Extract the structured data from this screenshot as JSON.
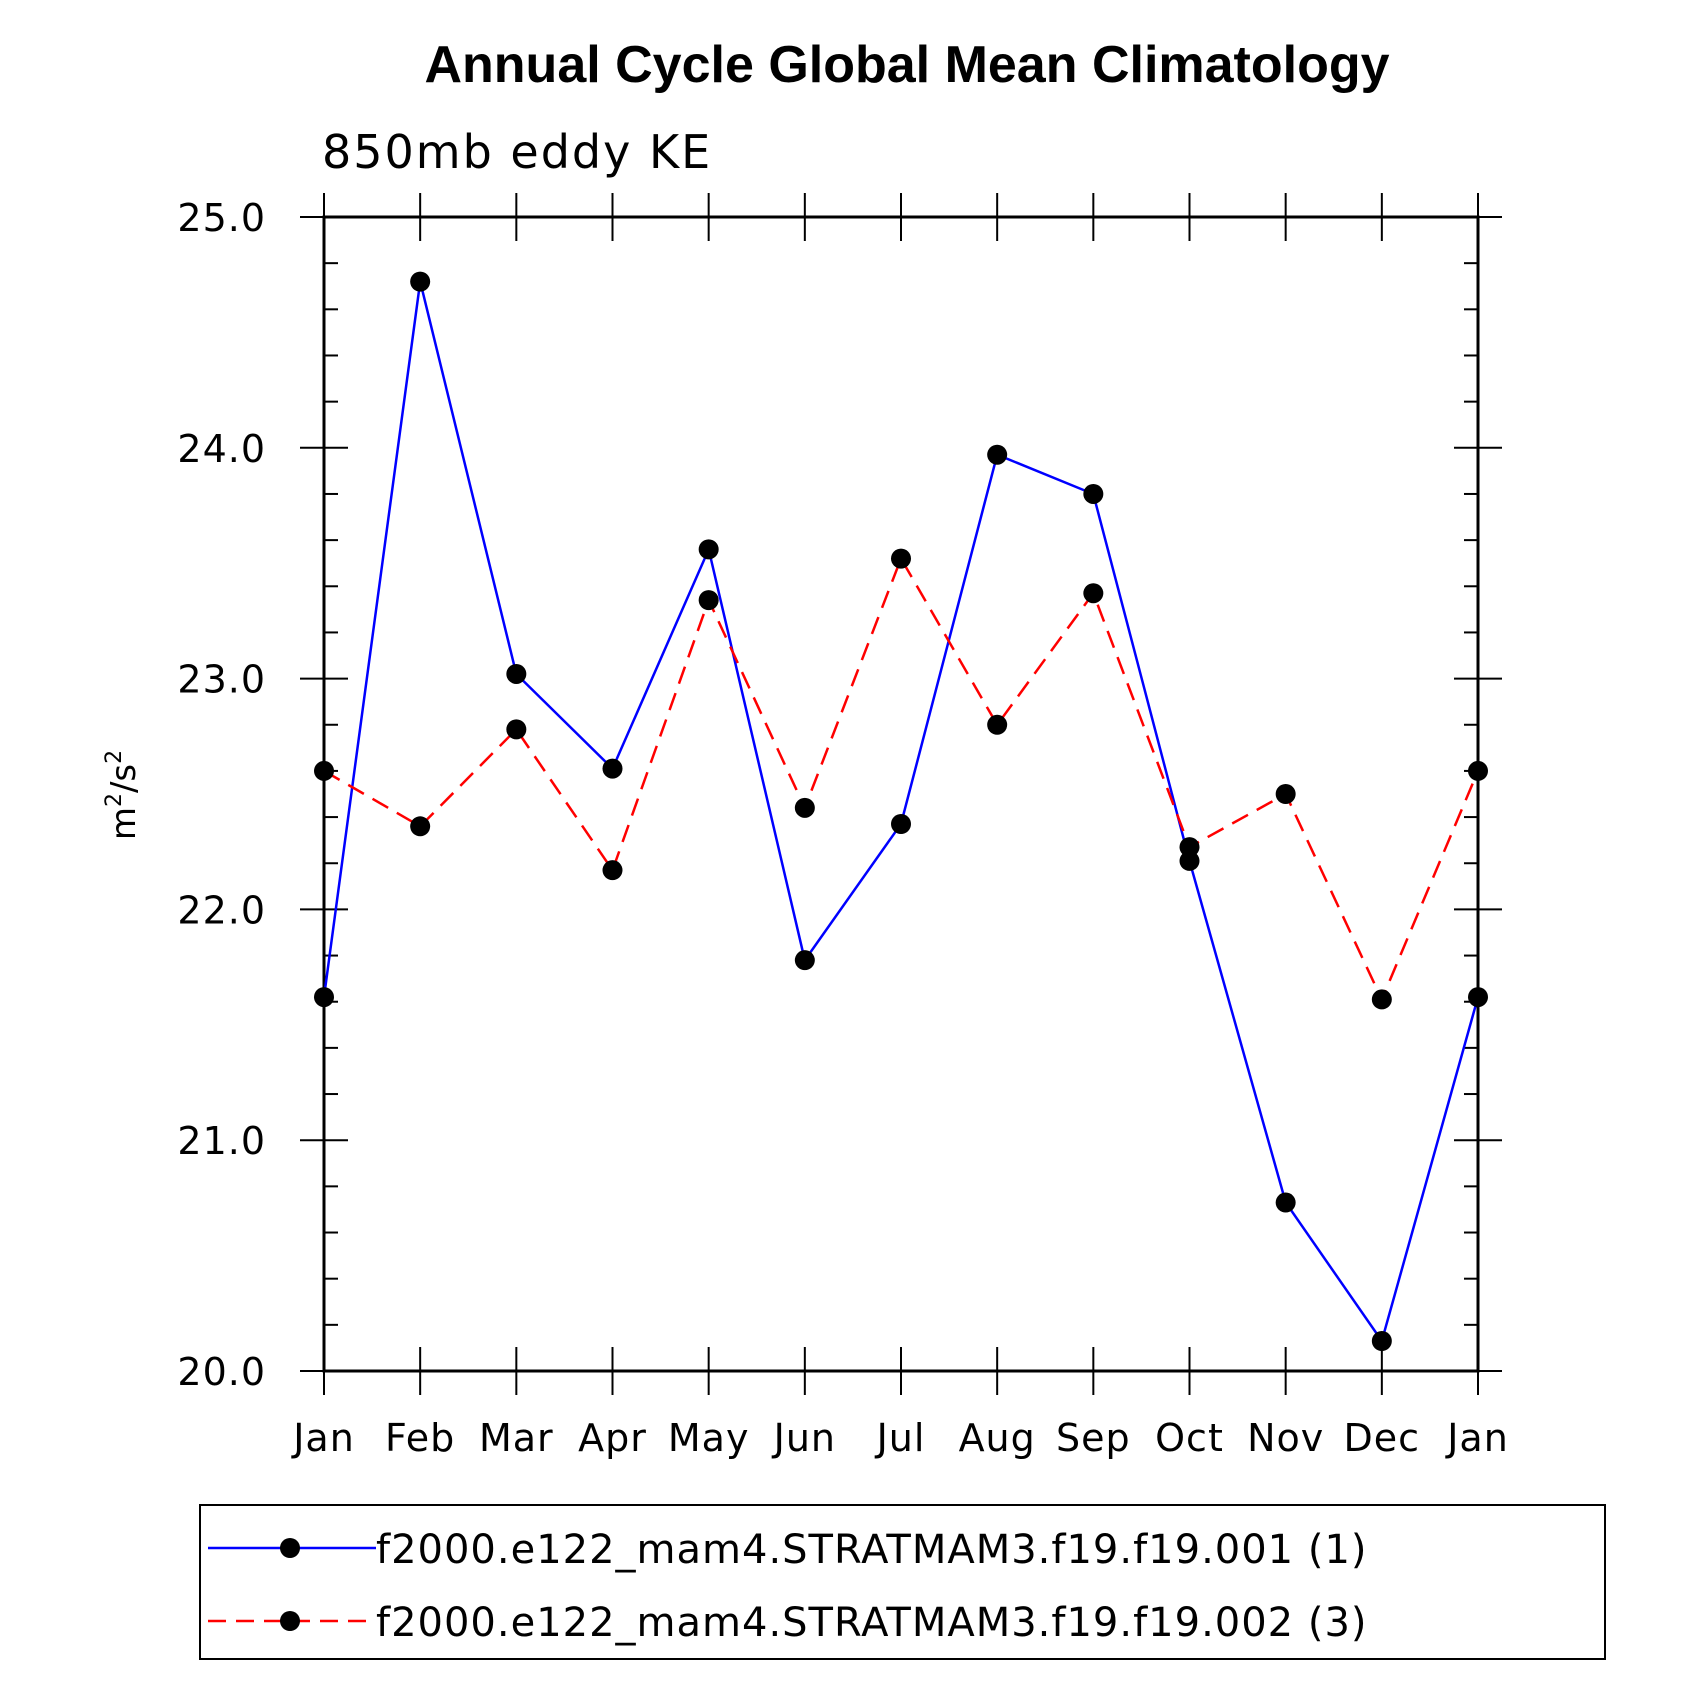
{
  "chart_data": {
    "type": "line",
    "title": "Annual Cycle Global Mean Climatology",
    "subtitle": "850mb eddy KE",
    "ylabel": "m",
    "ylabel_sup1": "2",
    "ylabel_mid": "/s",
    "ylabel_sup2": "2",
    "xlabel": "",
    "ylim": [
      20.0,
      25.0
    ],
    "yticks": [
      "20.0",
      "21.0",
      "22.0",
      "23.0",
      "24.0",
      "25.0"
    ],
    "categories": [
      "Jan",
      "Feb",
      "Mar",
      "Apr",
      "May",
      "Jun",
      "Jul",
      "Aug",
      "Sep",
      "Oct",
      "Nov",
      "Dec",
      "Jan"
    ],
    "grid": false,
    "legend_position": "bottom",
    "series": [
      {
        "name": "f2000.e122_mam4.STRATMAM3.f19.f19.001 (1)",
        "color": "#0000ff",
        "dash": "solid",
        "values": [
          21.62,
          24.72,
          23.02,
          22.61,
          23.56,
          21.78,
          22.37,
          23.97,
          23.8,
          22.21,
          20.73,
          20.13,
          21.62
        ]
      },
      {
        "name": "f2000.e122_mam4.STRATMAM3.f19.f19.002 (3)",
        "color": "#ff0000",
        "dash": "dashed",
        "values": [
          22.6,
          22.36,
          22.78,
          22.17,
          23.34,
          22.44,
          23.52,
          22.8,
          23.37,
          22.27,
          22.5,
          21.61,
          22.6
        ]
      }
    ]
  }
}
